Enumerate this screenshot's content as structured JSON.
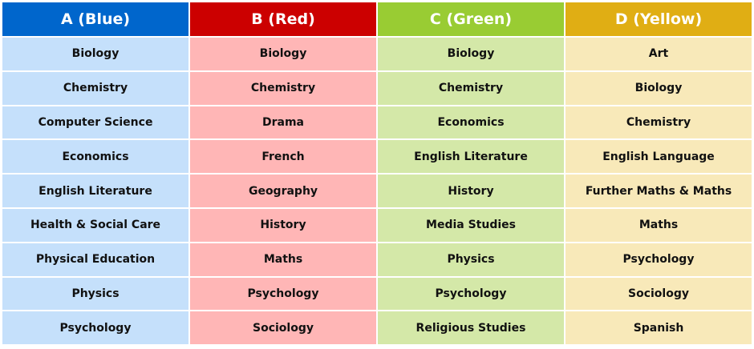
{
  "columns": [
    {
      "header": "A (Blue)",
      "header_color": "#0066cc",
      "cell_color": "#c5e0fb",
      "subjects": [
        "Biology",
        "Chemistry",
        "Computer Science",
        "Economics",
        "English Literature",
        "Health & Social Care",
        "Physical Education",
        "Physics",
        "Psychology"
      ]
    },
    {
      "header": "B (Red)",
      "header_color": "#cc0000",
      "cell_color": "#ffb6b6",
      "subjects": [
        "Biology",
        "Chemistry",
        "Drama",
        "French",
        "Geography",
        "History",
        "Maths",
        "Psychology",
        "Sociology"
      ]
    },
    {
      "header": "C (Green)",
      "header_color": "#99cc33",
      "cell_color": "#d4e8a8",
      "subjects": [
        "Biology",
        "Chemistry",
        "Economics",
        "English Literature",
        "History",
        "Media Studies",
        "Physics",
        "Psychology",
        "Religious Studies"
      ]
    },
    {
      "header": "D (Yellow)",
      "header_color": "#e0ae14",
      "cell_color": "#f8e9b9",
      "subjects": [
        "Art",
        "Biology",
        "Chemistry",
        "English Language",
        "Further Maths & Maths",
        "Maths",
        "Psychology",
        "Sociology",
        "Spanish"
      ]
    }
  ]
}
